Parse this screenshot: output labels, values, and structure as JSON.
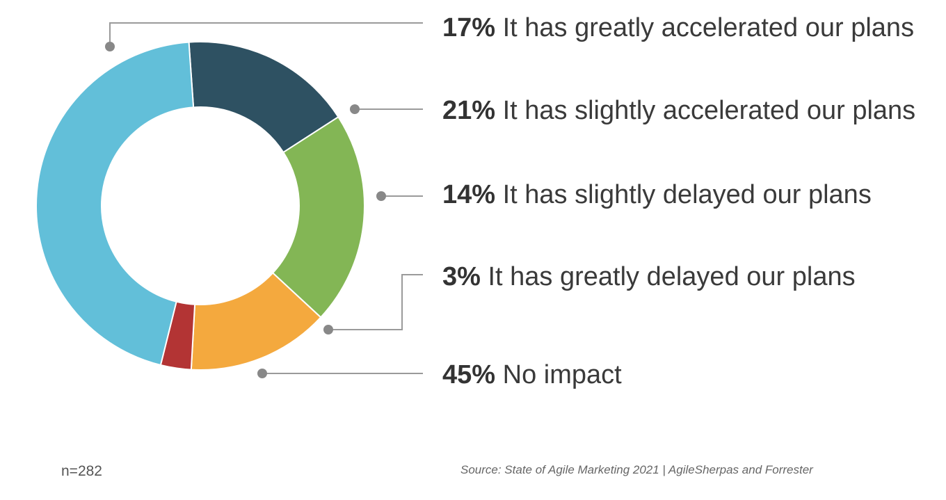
{
  "chart_data": {
    "type": "pie",
    "donut": true,
    "categories": [
      "It has greatly accelerated our plans",
      "It has slightly accelerated our plans",
      "It has slightly delayed our plans",
      "It has greatly delayed our plans",
      "No impact"
    ],
    "values": [
      17,
      21,
      14,
      3,
      45
    ],
    "value_labels": [
      "17%",
      "21%",
      "14%",
      "3%",
      "45%"
    ],
    "colors": [
      "#2e5162",
      "#83b655",
      "#f4a93e",
      "#b33434",
      "#62bfd9"
    ],
    "legend_placement": "right"
  },
  "footnote": "n=282",
  "source": "Source: State of Agile Marketing 2021 | AgileSherpas and Forrester"
}
